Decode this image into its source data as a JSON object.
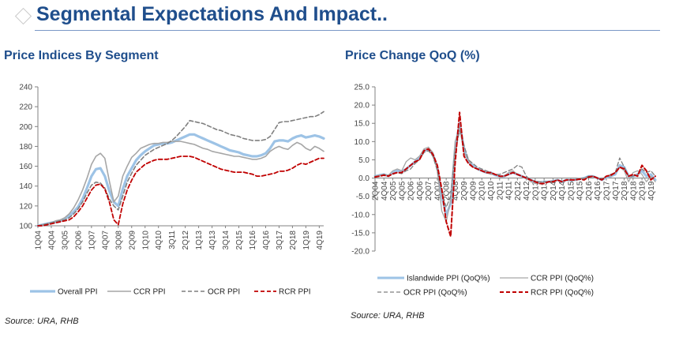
{
  "header": {
    "title": "Segmental Expectations And Impact..",
    "icon": "diamond-icon",
    "accent_color": "#1f4e8c"
  },
  "left_panel": {
    "title": "Price Indices By Segment",
    "source": "Source:  URA, RHB"
  },
  "right_panel": {
    "title": "Price Change QoQ (%)",
    "source": "Source:  URA, RHB"
  },
  "chart_data": [
    {
      "type": "line",
      "title": "Price Indices By Segment",
      "xlabel": "",
      "ylabel": "",
      "ylim": [
        100,
        240
      ],
      "yticks": [
        100,
        120,
        140,
        160,
        180,
        200,
        220,
        240
      ],
      "x_start": "1Q04",
      "n_points": 65,
      "xtick_labels": [
        "1Q04",
        "4Q04",
        "3Q05",
        "2Q06",
        "1Q07",
        "4Q07",
        "3Q08",
        "2Q09",
        "1Q10",
        "4Q10",
        "3Q11",
        "2Q12",
        "1Q13",
        "4Q13",
        "3Q14",
        "2Q15",
        "1Q16",
        "4Q16",
        "3Q17",
        "2Q18",
        "1Q19",
        "4Q19"
      ],
      "legend_position": "bottom",
      "grid": false,
      "series": [
        {
          "name": "Overall PPI",
          "color": "#9dc3e6",
          "style": "solid",
          "width": 3.2,
          "values": [
            100,
            101,
            102,
            103,
            104,
            105,
            107,
            110,
            114,
            119,
            127,
            138,
            150,
            157,
            158,
            150,
            135,
            124,
            120,
            137,
            150,
            158,
            166,
            171,
            175,
            178,
            181,
            182,
            183,
            183,
            184,
            186,
            188,
            190,
            192,
            192,
            190,
            188,
            186,
            184,
            182,
            180,
            178,
            176,
            175,
            174,
            172,
            171,
            170,
            170,
            171,
            173,
            178,
            185,
            186,
            186,
            185,
            188,
            190,
            191,
            189,
            190,
            191,
            190,
            188
          ]
        },
        {
          "name": "CCR PPI",
          "color": "#a6a6a6",
          "style": "solid",
          "width": 1.6,
          "values": [
            100,
            101,
            102,
            103,
            105,
            106,
            108,
            112,
            118,
            126,
            136,
            148,
            162,
            170,
            173,
            168,
            145,
            124,
            130,
            150,
            160,
            169,
            173,
            178,
            180,
            182,
            183,
            183,
            184,
            184,
            185,
            185,
            185,
            184,
            183,
            182,
            180,
            178,
            177,
            175,
            174,
            173,
            172,
            171,
            170,
            170,
            169,
            168,
            167,
            167,
            168,
            170,
            175,
            178,
            180,
            178,
            177,
            181,
            184,
            182,
            178,
            176,
            180,
            178,
            175
          ]
        },
        {
          "name": "OCR PPI",
          "color": "#7f7f7f",
          "style": "dashed",
          "width": 1.6,
          "values": [
            100,
            101,
            102,
            103,
            104,
            105,
            106,
            108,
            112,
            117,
            124,
            133,
            141,
            144,
            143,
            138,
            127,
            120,
            116,
            130,
            144,
            153,
            161,
            166,
            171,
            174,
            177,
            179,
            181,
            183,
            186,
            190,
            195,
            200,
            206,
            205,
            204,
            203,
            201,
            199,
            197,
            196,
            194,
            192,
            191,
            190,
            188,
            187,
            186,
            186,
            186,
            187,
            190,
            197,
            204,
            205,
            205,
            206,
            207,
            208,
            209,
            210,
            210,
            212,
            215
          ]
        },
        {
          "name": "RCR PPI",
          "color": "#c00000",
          "style": "dashed",
          "width": 1.8,
          "values": [
            100,
            100,
            101,
            102,
            103,
            104,
            105,
            106,
            109,
            114,
            120,
            128,
            136,
            141,
            142,
            137,
            124,
            106,
            101,
            122,
            136,
            146,
            154,
            158,
            162,
            164,
            166,
            167,
            167,
            167,
            168,
            169,
            170,
            170,
            170,
            169,
            167,
            165,
            163,
            161,
            159,
            157,
            156,
            155,
            154,
            154,
            154,
            153,
            152,
            150,
            150,
            151,
            152,
            153,
            155,
            155,
            156,
            158,
            161,
            163,
            162,
            164,
            166,
            168,
            168
          ]
        }
      ]
    },
    {
      "type": "line",
      "title": "Price Change QoQ (%)",
      "xlabel": "",
      "ylabel": "",
      "ylim": [
        -20,
        25
      ],
      "yticks": [
        25.0,
        20.0,
        15.0,
        10.0,
        5.0,
        0.0,
        -5.0,
        -10.0,
        -15.0,
        -20.0
      ],
      "x_start": "2Q04",
      "n_points": 64,
      "xtick_labels": [
        "2Q04",
        "4Q04",
        "2Q05",
        "4Q05",
        "2Q06",
        "4Q06",
        "2Q07",
        "4Q07",
        "2Q08",
        "4Q08",
        "2Q09",
        "4Q09",
        "2Q10",
        "4Q10",
        "2Q11",
        "4Q11",
        "2Q12",
        "4Q12",
        "2Q13",
        "4Q13",
        "2Q14",
        "4Q14",
        "2Q15",
        "4Q15",
        "2Q16",
        "4Q16",
        "2Q17",
        "4Q17",
        "2Q18",
        "4Q18",
        "2Q19",
        "4Q19"
      ],
      "legend_position": "bottom",
      "grid": false,
      "series": [
        {
          "name": "Islandwide PPI (QoQ%)",
          "color": "#9dc3e6",
          "style": "solid",
          "width": 3.0,
          "values": [
            0.5,
            0.8,
            1.0,
            0.6,
            1.5,
            2.0,
            1.8,
            2.5,
            3.5,
            4.5,
            5.5,
            7.5,
            7.8,
            6.5,
            3.0,
            -5.0,
            -10.0,
            -7.0,
            8.0,
            15.0,
            8.0,
            4.5,
            3.5,
            2.5,
            2.0,
            1.5,
            1.5,
            0.8,
            0.5,
            0.5,
            1.0,
            1.5,
            1.0,
            0.5,
            0.0,
            -0.5,
            -1.0,
            -1.2,
            -1.0,
            -1.0,
            -0.8,
            -0.5,
            -1.0,
            -0.5,
            -0.6,
            -0.5,
            -0.2,
            0.0,
            0.5,
            0.5,
            0.0,
            -0.5,
            0.2,
            0.5,
            1.0,
            3.5,
            3.0,
            0.5,
            0.5,
            1.0,
            2.0,
            0.5,
            1.0,
            -0.5
          ]
        },
        {
          "name": "CCR PPI (QoQ%)",
          "color": "#a6a6a6",
          "style": "solid",
          "width": 1.3,
          "values": [
            0.5,
            0.8,
            1.0,
            0.8,
            2.0,
            2.5,
            2.0,
            4.5,
            5.5,
            5.0,
            6.0,
            8.0,
            8.5,
            7.0,
            2.0,
            -9.0,
            -12.0,
            -6.0,
            10.0,
            14.0,
            7.0,
            5.0,
            3.0,
            2.5,
            2.0,
            1.5,
            1.0,
            1.0,
            0.5,
            0.5,
            1.5,
            2.0,
            1.0,
            0.5,
            0.0,
            -1.0,
            -1.5,
            -1.5,
            -1.0,
            -1.0,
            -1.0,
            -0.5,
            -1.0,
            -0.5,
            -0.5,
            -0.5,
            0.0,
            0.0,
            0.5,
            0.5,
            0.0,
            -0.5,
            0.5,
            0.5,
            1.5,
            3.0,
            2.0,
            -1.0,
            1.5,
            2.0,
            1.0,
            -1.0,
            0.5,
            -1.0
          ]
        },
        {
          "name": "OCR PPI (QoQ%)",
          "color": "#7f7f7f",
          "style": "dashed",
          "width": 1.3,
          "values": [
            0.5,
            0.5,
            1.0,
            0.5,
            1.0,
            1.5,
            1.2,
            2.0,
            2.5,
            4.0,
            5.0,
            7.0,
            7.5,
            6.0,
            2.0,
            -4.0,
            -8.0,
            -5.0,
            7.0,
            13.0,
            9.0,
            5.0,
            4.0,
            3.0,
            2.5,
            2.0,
            1.5,
            1.0,
            1.0,
            1.5,
            2.0,
            2.5,
            3.5,
            3.0,
            0.5,
            -0.5,
            -0.8,
            -1.0,
            -1.0,
            -1.0,
            -0.8,
            -0.5,
            -1.0,
            -0.5,
            -0.5,
            -0.5,
            -0.3,
            0.0,
            0.5,
            0.5,
            0.0,
            -0.3,
            0.5,
            1.0,
            1.5,
            5.5,
            3.0,
            0.5,
            0.5,
            1.0,
            2.5,
            1.5,
            2.0,
            0.5
          ]
        },
        {
          "name": "RCR PPI (QoQ%)",
          "color": "#c00000",
          "style": "dashed",
          "width": 2.0,
          "values": [
            0.3,
            0.5,
            0.8,
            0.5,
            1.2,
            1.5,
            1.5,
            2.5,
            3.5,
            4.5,
            5.0,
            7.5,
            8.0,
            6.5,
            3.5,
            -3.0,
            -12.0,
            -16.0,
            4.0,
            18.0,
            6.0,
            4.0,
            3.0,
            2.5,
            2.0,
            1.5,
            1.5,
            1.0,
            0.5,
            0.5,
            1.0,
            1.5,
            1.0,
            0.5,
            0.0,
            -0.5,
            -1.0,
            -1.5,
            -1.5,
            -1.0,
            -1.0,
            -0.5,
            -1.0,
            -0.5,
            -0.5,
            -0.5,
            -0.3,
            -0.5,
            0.3,
            0.5,
            0.0,
            -0.5,
            0.5,
            0.8,
            1.5,
            3.0,
            2.5,
            0.5,
            1.0,
            0.5,
            3.5,
            2.0,
            -0.5,
            0.5
          ]
        }
      ]
    }
  ]
}
